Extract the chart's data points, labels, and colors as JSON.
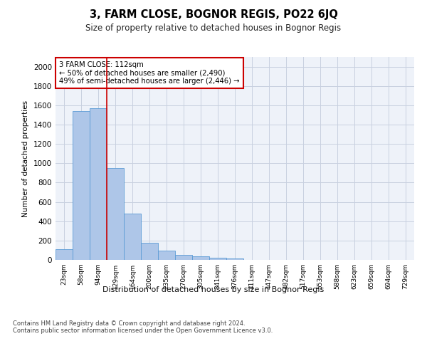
{
  "title": "3, FARM CLOSE, BOGNOR REGIS, PO22 6JQ",
  "subtitle": "Size of property relative to detached houses in Bognor Regis",
  "xlabel": "Distribution of detached houses by size in Bognor Regis",
  "ylabel": "Number of detached properties",
  "bar_color": "#aec6e8",
  "bar_edge_color": "#5b9bd5",
  "vline_color": "#cc0000",
  "vline_x_idx": 2,
  "annotation_text": "3 FARM CLOSE: 112sqm\n← 50% of detached houses are smaller (2,490)\n49% of semi-detached houses are larger (2,446) →",
  "annotation_box_color": "#cc0000",
  "categories": [
    "23sqm",
    "58sqm",
    "94sqm",
    "129sqm",
    "164sqm",
    "200sqm",
    "235sqm",
    "270sqm",
    "305sqm",
    "341sqm",
    "376sqm",
    "411sqm",
    "447sqm",
    "482sqm",
    "517sqm",
    "553sqm",
    "588sqm",
    "623sqm",
    "659sqm",
    "694sqm",
    "729sqm"
  ],
  "values": [
    110,
    1540,
    1570,
    950,
    480,
    180,
    95,
    48,
    35,
    22,
    15,
    0,
    0,
    0,
    0,
    0,
    0,
    0,
    0,
    0,
    0
  ],
  "ylim": [
    0,
    2100
  ],
  "yticks": [
    0,
    200,
    400,
    600,
    800,
    1000,
    1200,
    1400,
    1600,
    1800,
    2000
  ],
  "footer_text": "Contains HM Land Registry data © Crown copyright and database right 2024.\nContains public sector information licensed under the Open Government Licence v3.0.",
  "background_color": "#eef2f9",
  "fig_background_color": "#ffffff",
  "grid_color": "#c8d0e0"
}
